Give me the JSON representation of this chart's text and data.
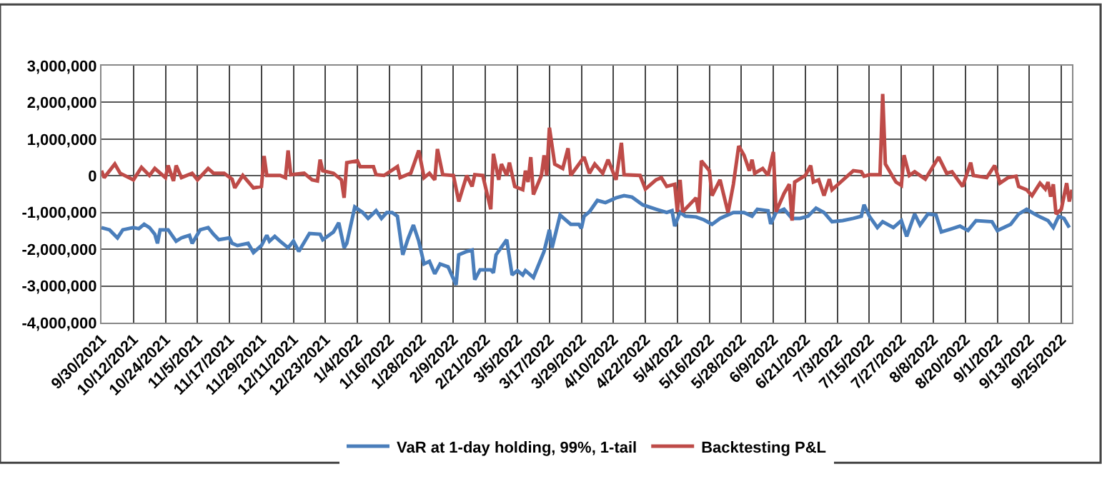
{
  "chart_data": {
    "type": "line",
    "legend": "bottom",
    "grid": true,
    "line_style": "solid",
    "marker": "none",
    "xlim": [
      "2021-09-30",
      "2022-09-29"
    ],
    "xticks": [
      {
        "value": "2021-09-30",
        "label": "9/30/2021"
      },
      {
        "value": "2021-10-12",
        "label": "10/12/2021"
      },
      {
        "value": "2021-10-24",
        "label": "10/24/2021"
      },
      {
        "value": "2021-11-05",
        "label": "11/5/2021"
      },
      {
        "value": "2021-11-17",
        "label": "11/17/2021"
      },
      {
        "value": "2021-11-29",
        "label": "11/29/2021"
      },
      {
        "value": "2021-12-11",
        "label": "12/11/2021"
      },
      {
        "value": "2021-12-23",
        "label": "12/23/2021"
      },
      {
        "value": "2022-01-04",
        "label": "1/4/2022"
      },
      {
        "value": "2022-01-16",
        "label": "1/16/2022"
      },
      {
        "value": "2022-01-28",
        "label": "1/28/2022"
      },
      {
        "value": "2022-02-09",
        "label": "2/9/2022"
      },
      {
        "value": "2022-02-21",
        "label": "2/21/2022"
      },
      {
        "value": "2022-03-05",
        "label": "3/5/2022"
      },
      {
        "value": "2022-03-17",
        "label": "3/17/2022"
      },
      {
        "value": "2022-03-29",
        "label": "3/29/2022"
      },
      {
        "value": "2022-04-10",
        "label": "4/10/2022"
      },
      {
        "value": "2022-04-22",
        "label": "4/22/2022"
      },
      {
        "value": "2022-05-04",
        "label": "5/4/2022"
      },
      {
        "value": "2022-05-16",
        "label": "5/16/2022"
      },
      {
        "value": "2022-05-28",
        "label": "5/28/2022"
      },
      {
        "value": "2022-06-09",
        "label": "6/9/2022"
      },
      {
        "value": "2022-06-21",
        "label": "6/21/2022"
      },
      {
        "value": "2022-07-03",
        "label": "7/3/2022"
      },
      {
        "value": "2022-07-15",
        "label": "7/15/2022"
      },
      {
        "value": "2022-07-27",
        "label": "7/27/2022"
      },
      {
        "value": "2022-08-08",
        "label": "8/8/2022"
      },
      {
        "value": "2022-08-20",
        "label": "8/20/2022"
      },
      {
        "value": "2022-09-01",
        "label": "9/1/2022"
      },
      {
        "value": "2022-09-13",
        "label": "9/13/2022"
      },
      {
        "value": "2022-09-25",
        "label": "9/25/2022"
      }
    ],
    "ylim": [
      -4000000,
      3000000
    ],
    "yticks": [
      {
        "value": -4000000,
        "label": "-4,000,000"
      },
      {
        "value": -3000000,
        "label": "-3,000,000"
      },
      {
        "value": -2000000,
        "label": "-2,000,000"
      },
      {
        "value": -1000000,
        "label": "-1,000,000"
      },
      {
        "value": 0,
        "label": "0"
      },
      {
        "value": 1000000,
        "label": "1,000,000"
      },
      {
        "value": 2000000,
        "label": "2,000,000"
      },
      {
        "value": 3000000,
        "label": "3,000,000"
      }
    ],
    "series": [
      {
        "name": "VaR at 1-day holding, 99%, 1-tail",
        "color": "#4a7ebb",
        "x": [
          "2021-09-30",
          "2021-10-03",
          "2021-10-06",
          "2021-10-08",
          "2021-10-12",
          "2021-10-14",
          "2021-10-16",
          "2021-10-18",
          "2021-10-20",
          "2021-10-21",
          "2021-10-22",
          "2021-10-25",
          "2021-10-28",
          "2021-10-30",
          "2021-11-02",
          "2021-11-03",
          "2021-11-06",
          "2021-11-09",
          "2021-11-11",
          "2021-11-13",
          "2021-11-17",
          "2021-11-18",
          "2021-11-20",
          "2021-11-24",
          "2021-11-26",
          "2021-11-29",
          "2021-12-01",
          "2021-12-02",
          "2021-12-04",
          "2021-12-06",
          "2021-12-09",
          "2021-12-11",
          "2021-12-13",
          "2021-12-17",
          "2021-12-21",
          "2021-12-22",
          "2021-12-26",
          "2021-12-28",
          "2021-12-30",
          "2021-12-31",
          "2022-01-03",
          "2022-01-06",
          "2022-01-08",
          "2022-01-11",
          "2022-01-13",
          "2022-01-15",
          "2022-01-17",
          "2022-01-19",
          "2022-01-21",
          "2022-01-23",
          "2022-01-25",
          "2022-01-27",
          "2022-01-29",
          "2022-01-31",
          "2022-02-02",
          "2022-02-04",
          "2022-02-07",
          "2022-02-10",
          "2022-02-11",
          "2022-02-14",
          "2022-02-16",
          "2022-02-17",
          "2022-02-19",
          "2022-02-23",
          "2022-02-24",
          "2022-02-25",
          "2022-03-01",
          "2022-03-03",
          "2022-03-05",
          "2022-03-07",
          "2022-03-08",
          "2022-03-11",
          "2022-03-15",
          "2022-03-17",
          "2022-03-18",
          "2022-03-21",
          "2022-03-25",
          "2022-03-28",
          "2022-03-29",
          "2022-03-30",
          "2022-04-01",
          "2022-04-04",
          "2022-04-07",
          "2022-04-11",
          "2022-04-14",
          "2022-04-17",
          "2022-04-21",
          "2022-04-26",
          "2022-04-30",
          "2022-05-02",
          "2022-05-03",
          "2022-05-05",
          "2022-05-07",
          "2022-05-11",
          "2022-05-14",
          "2022-05-17",
          "2022-05-20",
          "2022-05-25",
          "2022-05-29",
          "2022-06-01",
          "2022-06-03",
          "2022-06-07",
          "2022-06-08",
          "2022-06-10",
          "2022-06-13",
          "2022-06-16",
          "2022-06-19",
          "2022-06-22",
          "2022-06-25",
          "2022-06-28",
          "2022-07-01",
          "2022-07-05",
          "2022-07-09",
          "2022-07-12",
          "2022-07-13",
          "2022-07-15",
          "2022-07-18",
          "2022-07-20",
          "2022-07-24",
          "2022-07-27",
          "2022-07-29",
          "2022-08-01",
          "2022-08-03",
          "2022-08-06",
          "2022-08-09",
          "2022-08-11",
          "2022-08-15",
          "2022-08-18",
          "2022-08-21",
          "2022-08-24",
          "2022-08-30",
          "2022-09-01",
          "2022-09-06",
          "2022-09-09",
          "2022-09-12",
          "2022-09-15",
          "2022-09-17",
          "2022-09-20",
          "2022-09-22",
          "2022-09-24",
          "2022-09-26",
          "2022-09-28"
        ],
        "values": [
          -1410000,
          -1470000,
          -1690000,
          -1470000,
          -1410000,
          -1440000,
          -1320000,
          -1410000,
          -1590000,
          -1840000,
          -1470000,
          -1470000,
          -1780000,
          -1690000,
          -1620000,
          -1840000,
          -1470000,
          -1410000,
          -1590000,
          -1740000,
          -1690000,
          -1840000,
          -1900000,
          -1840000,
          -2090000,
          -1900000,
          -1620000,
          -1780000,
          -1650000,
          -1780000,
          -1960000,
          -1780000,
          -2060000,
          -1570000,
          -1590000,
          -1740000,
          -1530000,
          -1280000,
          -1960000,
          -1840000,
          -850000,
          -1000000,
          -1160000,
          -950000,
          -1160000,
          -1000000,
          -1000000,
          -1100000,
          -2150000,
          -1710000,
          -1340000,
          -1780000,
          -2400000,
          -2330000,
          -2670000,
          -2400000,
          -2480000,
          -2970000,
          -2150000,
          -2060000,
          -2020000,
          -2830000,
          -2560000,
          -2560000,
          -2640000,
          -2150000,
          -1740000,
          -2700000,
          -2580000,
          -2700000,
          -2580000,
          -2770000,
          -2060000,
          -1470000,
          -1960000,
          -1070000,
          -1320000,
          -1320000,
          -1430000,
          -1100000,
          -980000,
          -670000,
          -730000,
          -600000,
          -540000,
          -580000,
          -790000,
          -910000,
          -1000000,
          -950000,
          -1370000,
          -990000,
          -1100000,
          -1120000,
          -1200000,
          -1320000,
          -1160000,
          -1000000,
          -1000000,
          -1100000,
          -910000,
          -950000,
          -1310000,
          -1000000,
          -910000,
          -1160000,
          -1160000,
          -1100000,
          -880000,
          -1000000,
          -1250000,
          -1220000,
          -1160000,
          -1100000,
          -790000,
          -1100000,
          -1410000,
          -1250000,
          -1410000,
          -1220000,
          -1650000,
          -1040000,
          -1340000,
          -1040000,
          -1070000,
          -1530000,
          -1440000,
          -1370000,
          -1490000,
          -1220000,
          -1250000,
          -1490000,
          -1320000,
          -1040000,
          -910000,
          -1040000,
          -1120000,
          -1220000,
          -1410000,
          -1100000,
          -1160000,
          -1410000
        ]
      },
      {
        "name": "Backtesting P&L",
        "color": "#be4b48",
        "x": [
          "2021-09-30",
          "2021-10-01",
          "2021-10-05",
          "2021-10-07",
          "2021-10-12",
          "2021-10-15",
          "2021-10-18",
          "2021-10-20",
          "2021-10-24",
          "2021-10-25",
          "2021-10-27",
          "2021-10-28",
          "2021-10-30",
          "2021-11-03",
          "2021-11-05",
          "2021-11-09",
          "2021-11-11",
          "2021-11-15",
          "2021-11-18",
          "2021-11-19",
          "2021-11-22",
          "2021-11-26",
          "2021-11-29",
          "2021-11-30",
          "2021-12-01",
          "2021-12-06",
          "2021-12-08",
          "2021-12-09",
          "2021-12-10",
          "2021-12-15",
          "2021-12-18",
          "2021-12-20",
          "2021-12-21",
          "2021-12-22",
          "2021-12-26",
          "2021-12-29",
          "2021-12-30",
          "2021-12-31",
          "2022-01-04",
          "2022-01-05",
          "2022-01-10",
          "2022-01-11",
          "2022-01-14",
          "2022-01-19",
          "2022-01-20",
          "2022-01-24",
          "2022-01-27",
          "2022-01-29",
          "2022-01-31",
          "2022-02-02",
          "2022-02-03",
          "2022-02-05",
          "2022-02-09",
          "2022-02-11",
          "2022-02-14",
          "2022-02-16",
          "2022-02-17",
          "2022-02-20",
          "2022-02-23",
          "2022-02-24",
          "2022-02-26",
          "2022-02-27",
          "2022-03-01",
          "2022-03-02",
          "2022-03-04",
          "2022-03-07",
          "2022-03-08",
          "2022-03-09",
          "2022-03-10",
          "2022-03-11",
          "2022-03-14",
          "2022-03-15",
          "2022-03-16",
          "2022-03-17",
          "2022-03-19",
          "2022-03-22",
          "2022-03-24",
          "2022-03-25",
          "2022-03-30",
          "2022-04-01",
          "2022-04-03",
          "2022-04-06",
          "2022-04-08",
          "2022-04-11",
          "2022-04-13",
          "2022-04-14",
          "2022-04-20",
          "2022-04-22",
          "2022-04-26",
          "2022-04-28",
          "2022-04-30",
          "2022-05-03",
          "2022-05-04",
          "2022-05-05",
          "2022-05-06",
          "2022-05-11",
          "2022-05-12",
          "2022-05-13",
          "2022-05-16",
          "2022-05-17",
          "2022-05-20",
          "2022-05-23",
          "2022-05-25",
          "2022-05-27",
          "2022-05-29",
          "2022-05-31",
          "2022-06-01",
          "2022-06-02",
          "2022-06-05",
          "2022-06-07",
          "2022-06-09",
          "2022-06-10",
          "2022-06-13",
          "2022-06-15",
          "2022-06-16",
          "2022-06-17",
          "2022-06-21",
          "2022-06-23",
          "2022-06-24",
          "2022-06-26",
          "2022-06-28",
          "2022-06-30",
          "2022-07-01",
          "2022-07-09",
          "2022-07-12",
          "2022-07-13",
          "2022-07-15",
          "2022-07-19",
          "2022-07-20",
          "2022-07-21",
          "2022-07-25",
          "2022-07-27",
          "2022-07-28",
          "2022-07-30",
          "2022-08-01",
          "2022-08-05",
          "2022-08-10",
          "2022-08-13",
          "2022-08-15",
          "2022-08-19",
          "2022-08-22",
          "2022-08-23",
          "2022-08-28",
          "2022-08-31",
          "2022-09-02",
          "2022-09-05",
          "2022-09-08",
          "2022-09-09",
          "2022-09-12",
          "2022-09-14",
          "2022-09-17",
          "2022-09-19",
          "2022-09-20",
          "2022-09-21",
          "2022-09-22",
          "2022-09-23",
          "2022-09-25",
          "2022-09-27",
          "2022-09-28",
          "2022-09-29"
        ],
        "values": [
          140000,
          -50000,
          320000,
          70000,
          -110000,
          230000,
          10000,
          200000,
          -50000,
          280000,
          -140000,
          280000,
          -50000,
          70000,
          -110000,
          200000,
          70000,
          70000,
          -90000,
          -330000,
          10000,
          -330000,
          -290000,
          540000,
          10000,
          10000,
          -50000,
          690000,
          30000,
          70000,
          -110000,
          -140000,
          440000,
          140000,
          70000,
          -110000,
          -600000,
          360000,
          410000,
          250000,
          250000,
          30000,
          10000,
          250000,
          -50000,
          70000,
          690000,
          -50000,
          70000,
          -110000,
          730000,
          30000,
          10000,
          -700000,
          10000,
          -290000,
          30000,
          10000,
          -910000,
          600000,
          -110000,
          320000,
          10000,
          360000,
          -290000,
          -380000,
          140000,
          -170000,
          510000,
          -510000,
          10000,
          560000,
          10000,
          1310000,
          320000,
          200000,
          750000,
          10000,
          510000,
          70000,
          320000,
          70000,
          440000,
          -110000,
          900000,
          30000,
          10000,
          -360000,
          -110000,
          -50000,
          -290000,
          -230000,
          -980000,
          -110000,
          -980000,
          -600000,
          -1000000,
          410000,
          140000,
          -540000,
          -110000,
          -1000000,
          -230000,
          810000,
          560000,
          140000,
          440000,
          70000,
          200000,
          10000,
          650000,
          -980000,
          -480000,
          -230000,
          -1220000,
          -170000,
          10000,
          280000,
          -170000,
          -110000,
          -540000,
          -90000,
          -380000,
          140000,
          110000,
          -10000,
          30000,
          30000,
          2230000,
          320000,
          -170000,
          -260000,
          560000,
          10000,
          110000,
          -90000,
          510000,
          70000,
          110000,
          -290000,
          360000,
          10000,
          -50000,
          280000,
          -200000,
          -50000,
          -10000,
          -290000,
          -380000,
          -540000,
          -200000,
          -360000,
          -170000,
          -570000,
          -230000,
          -1040000,
          -910000,
          -200000,
          -700000,
          -380000
        ]
      }
    ]
  }
}
